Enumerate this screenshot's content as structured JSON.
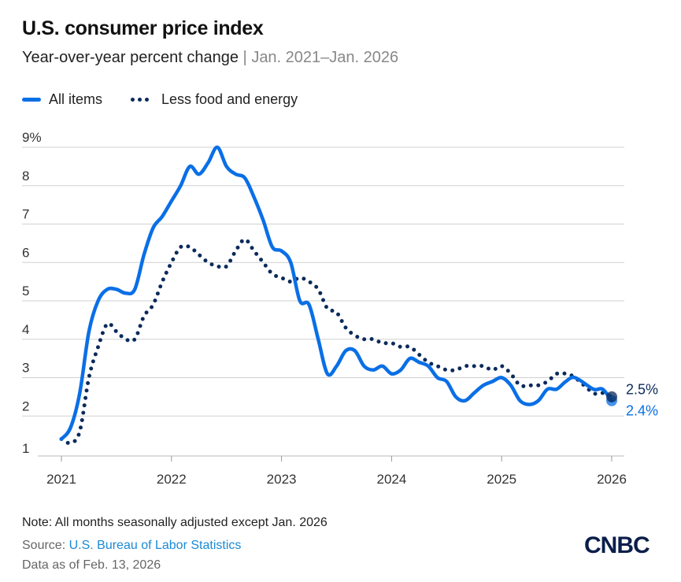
{
  "header": {
    "title": "U.S. consumer price index",
    "subtitle": "Year-over-year percent change",
    "separator": "|",
    "date_range": "Jan. 2021–Jan. 2026"
  },
  "footer": {
    "note": "Note: All months seasonally adjusted except Jan. 2026",
    "source_label": "Source: ",
    "source_link": "U.S. Bureau of Labor Statistics",
    "as_of": "Data as of Feb. 13, 2026",
    "logo": "CNBC"
  },
  "chart_data": {
    "type": "line",
    "title": "U.S. consumer price index",
    "subtitle": "Year-over-year percent change | Jan. 2021–Jan. 2026",
    "xlabel": "",
    "ylabel": "",
    "x_start": "2021-01",
    "x_ticks": [
      "2021",
      "2022",
      "2023",
      "2024",
      "2025",
      "2026"
    ],
    "y_ticks": [
      "1",
      "2",
      "3",
      "4",
      "5",
      "6",
      "7",
      "8",
      "9%"
    ],
    "ylim": [
      1,
      9
    ],
    "grid": true,
    "legend_position": "top-left",
    "colors": {
      "all_items": "#0a6fe6",
      "core": "#0b2a5b"
    },
    "series": [
      {
        "name": "All items",
        "style": "solid",
        "end_label": "2.4%",
        "values": [
          1.4,
          1.7,
          2.6,
          4.2,
          5.0,
          5.3,
          5.3,
          5.2,
          5.3,
          6.2,
          6.9,
          7.2,
          7.6,
          8.0,
          8.5,
          8.3,
          8.6,
          9.0,
          8.5,
          8.3,
          8.2,
          7.7,
          7.1,
          6.4,
          6.3,
          6.0,
          5.0,
          4.9,
          4.0,
          3.1,
          3.3,
          3.7,
          3.7,
          3.3,
          3.2,
          3.3,
          3.1,
          3.2,
          3.5,
          3.4,
          3.3,
          3.0,
          2.9,
          2.5,
          2.4,
          2.6,
          2.8,
          2.9,
          3.0,
          2.8,
          2.4,
          2.3,
          2.4,
          2.7,
          2.7,
          2.9,
          3.0,
          null,
          2.7,
          2.7,
          2.4
        ]
      },
      {
        "name": "Less food and energy",
        "style": "dotted",
        "end_label": "2.5%",
        "values": [
          1.4,
          1.3,
          1.6,
          3.0,
          3.8,
          4.4,
          4.2,
          4.0,
          4.0,
          4.6,
          4.9,
          5.5,
          6.0,
          6.4,
          6.4,
          6.2,
          6.0,
          5.9,
          5.9,
          6.3,
          6.6,
          6.3,
          6.0,
          5.7,
          5.6,
          5.5,
          5.6,
          5.5,
          5.3,
          4.8,
          4.7,
          4.3,
          4.1,
          4.0,
          4.0,
          3.9,
          3.9,
          3.8,
          3.8,
          3.6,
          3.4,
          3.3,
          3.2,
          3.2,
          3.3,
          3.3,
          3.3,
          3.2,
          3.3,
          3.1,
          2.8,
          2.8,
          2.8,
          2.9,
          3.1,
          3.1,
          3.0,
          null,
          2.6,
          2.6,
          2.5
        ]
      }
    ]
  }
}
